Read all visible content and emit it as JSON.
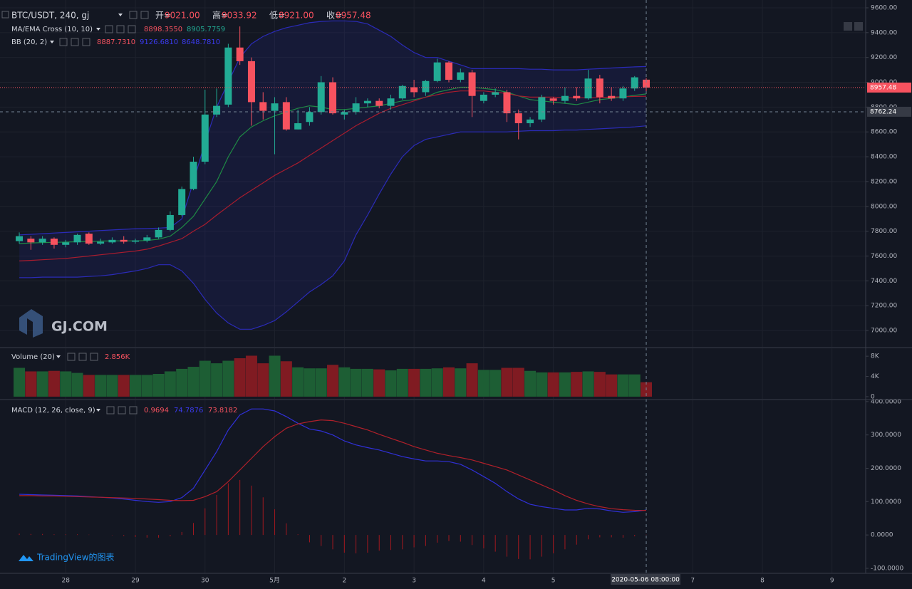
{
  "chart_data": [
    {
      "type": "candlestick",
      "legend": {
        "symbol": "BTC/USDT, 240, gj",
        "ohlc": [
          "开=",
          "9021.00",
          "高=",
          "9033.92",
          "低=",
          "8921.00",
          "收=",
          "8957.48"
        ],
        "ma": "MA/EMA Cross (10, 10)",
        "ma_values": [
          "8898.3550",
          "8905.7759"
        ],
        "bb": "BB (20, 2)",
        "bb_values": [
          "8887.7310",
          "9126.6810",
          "8648.7810"
        ]
      },
      "watermark": "GJ.COM",
      "xlim": [
        -1.66,
        72.9
      ],
      "ylim": [
        6868,
        9663
      ],
      "yticks": [
        {
          "value": 9600,
          "label": "9600.00"
        },
        {
          "value": 9400,
          "label": "9400.00"
        },
        {
          "value": 9200,
          "label": "9200.00"
        },
        {
          "value": 9000,
          "label": "9000.00"
        },
        {
          "value": 8800,
          "label": "8800.00"
        },
        {
          "value": 8600,
          "label": "8600.00"
        },
        {
          "value": 8400,
          "label": "8400.00"
        },
        {
          "value": 8200,
          "label": "8200.00"
        },
        {
          "value": 8000,
          "label": "8000.00"
        },
        {
          "value": 7800,
          "label": "7800.00"
        },
        {
          "value": 7600,
          "label": "7600.00"
        },
        {
          "value": 7400,
          "label": "7400.00"
        },
        {
          "value": 7200,
          "label": "7200.00"
        },
        {
          "value": 7000,
          "label": "7000.00"
        }
      ],
      "grid": true,
      "up_color": "#22ab94",
      "down_color": "#f7525f",
      "band_fill": "rgba(45,45,170,0.16)",
      "open": [
        7720,
        7740,
        7710,
        7740,
        7690,
        7710,
        7780,
        7700,
        7710,
        7730,
        7715,
        7725,
        7750,
        7810,
        7930,
        8140,
        8360,
        8740,
        8820,
        9280,
        9170,
        8840,
        8770,
        8840,
        8620,
        8680,
        8760,
        9000,
        8740,
        8760,
        8830,
        8850,
        8810,
        8870,
        8960,
        8920,
        9010,
        9160,
        9020,
        9080,
        8850,
        8900,
        8920,
        8750,
        8670,
        8700,
        8870,
        8850,
        8890,
        8870,
        9030,
        8890,
        8870,
        8950,
        9021
      ],
      "high": [
        7790,
        7760,
        7760,
        7750,
        7730,
        7780,
        7790,
        7740,
        7750,
        7760,
        7740,
        7770,
        7830,
        7960,
        8160,
        8400,
        8940,
        8950,
        9310,
        9450,
        9200,
        8920,
        8880,
        8880,
        8780,
        8800,
        9050,
        9040,
        8780,
        8880,
        8870,
        8870,
        8900,
        8980,
        9020,
        9020,
        9190,
        9170,
        9110,
        9100,
        8920,
        8950,
        8940,
        8780,
        8720,
        8900,
        8880,
        8960,
        8960,
        9100,
        9060,
        8960,
        8970,
        9050,
        9033.92
      ],
      "low": [
        7700,
        7650,
        7690,
        7660,
        7670,
        7690,
        7690,
        7690,
        7700,
        7700,
        7700,
        7710,
        7740,
        7800,
        7920,
        8130,
        8340,
        8720,
        8800,
        9140,
        8650,
        8700,
        8420,
        8610,
        8620,
        8650,
        8740,
        8740,
        8700,
        8740,
        8800,
        8790,
        8780,
        8860,
        8880,
        8890,
        9000,
        9000,
        9000,
        8720,
        8830,
        8880,
        8680,
        8540,
        8640,
        8680,
        8820,
        8830,
        8850,
        8860,
        8830,
        8850,
        8850,
        8930,
        8921
      ],
      "close": [
        7760,
        7710,
        7740,
        7690,
        7710,
        7770,
        7700,
        7715,
        7730,
        7715,
        7725,
        7750,
        7810,
        7930,
        8140,
        8360,
        8740,
        8810,
        9280,
        9170,
        8840,
        8770,
        8830,
        8620,
        8670,
        8760,
        9000,
        8750,
        8760,
        8830,
        8850,
        8810,
        8870,
        8970,
        8920,
        9010,
        9160,
        9020,
        9080,
        8890,
        8900,
        8920,
        8750,
        8670,
        8700,
        8880,
        8850,
        8890,
        8870,
        9030,
        8880,
        8870,
        8950,
        9040,
        8957.48
      ],
      "series": [
        {
          "color": "#1f8a45",
          "values": [
            7700,
            7705,
            7708,
            7710,
            7712,
            7715,
            7718,
            7720,
            7722,
            7722,
            7722,
            7725,
            7735,
            7760,
            7830,
            7920,
            8060,
            8200,
            8400,
            8560,
            8640,
            8690,
            8730,
            8760,
            8790,
            8810,
            8800,
            8780,
            8780,
            8790,
            8800,
            8810,
            8830,
            8850,
            8860,
            8880,
            8920,
            8940,
            8960,
            8960,
            8950,
            8940,
            8920,
            8890,
            8860,
            8850,
            8840,
            8830,
            8820,
            8840,
            8860,
            8870,
            8880,
            8895,
            8905.7759
          ]
        },
        {
          "color": "#a81c2e",
          "values": [
            7560,
            7565,
            7570,
            7575,
            7580,
            7590,
            7600,
            7610,
            7620,
            7630,
            7640,
            7655,
            7680,
            7710,
            7740,
            7800,
            7855,
            7930,
            8000,
            8070,
            8130,
            8190,
            8250,
            8300,
            8350,
            8410,
            8470,
            8530,
            8590,
            8650,
            8700,
            8750,
            8790,
            8820,
            8850,
            8880,
            8900,
            8920,
            8930,
            8930,
            8930,
            8920,
            8910,
            8890,
            8880,
            8880,
            8880,
            8875,
            8875,
            8875,
            8878,
            8880,
            8883,
            8886,
            8887.731
          ]
        },
        {
          "color": "#2b2bb8",
          "values": [
            7770,
            7775,
            7780,
            7785,
            7790,
            7795,
            7800,
            7805,
            7810,
            7815,
            7820,
            7822,
            7825,
            7830,
            7900,
            8200,
            8515,
            8800,
            9000,
            9200,
            9310,
            9370,
            9410,
            9440,
            9460,
            9480,
            9490,
            9495,
            9495,
            9490,
            9470,
            9420,
            9370,
            9300,
            9240,
            9200,
            9200,
            9170,
            9140,
            9110,
            9110,
            9110,
            9110,
            9110,
            9105,
            9105,
            9100,
            9100,
            9100,
            9105,
            9110,
            9115,
            9120,
            9124,
            9126.681
          ]
        },
        {
          "color": "#2b2bb8",
          "values": [
            7425,
            7425,
            7430,
            7430,
            7430,
            7430,
            7435,
            7440,
            7450,
            7465,
            7480,
            7500,
            7530,
            7530,
            7480,
            7380,
            7250,
            7140,
            7060,
            7010,
            7010,
            7040,
            7080,
            7150,
            7230,
            7310,
            7370,
            7440,
            7560,
            7770,
            7930,
            8100,
            8260,
            8400,
            8490,
            8540,
            8560,
            8580,
            8600,
            8600,
            8600,
            8600,
            8600,
            8605,
            8610,
            8610,
            8610,
            8615,
            8615,
            8620,
            8625,
            8630,
            8635,
            8640,
            8648.781
          ]
        }
      ],
      "last_price": 8957.48,
      "last_color": "#f7525f",
      "crosshair_price": 8762.24
    },
    {
      "type": "bar",
      "legend": {
        "title": "Volume (20)",
        "values": [
          "2.856K"
        ]
      },
      "xlim": [
        -1.66,
        72.9
      ],
      "ylim": [
        -0.43,
        9.57
      ],
      "yticks": [
        {
          "value": 8,
          "label": "8K"
        },
        {
          "value": 4,
          "label": "4K"
        },
        0
      ],
      "up_color": "#1d5e34",
      "down_color": "#801b22",
      "values": [
        5.7,
        5.0,
        5.0,
        5.1,
        5.0,
        4.7,
        4.3,
        4.3,
        4.3,
        4.3,
        4.3,
        4.3,
        4.5,
        5.0,
        5.5,
        5.9,
        7.1,
        6.6,
        7.1,
        7.6,
        8.1,
        6.6,
        8.1,
        7.0,
        5.8,
        5.6,
        5.6,
        6.3,
        5.8,
        5.5,
        5.5,
        5.4,
        5.2,
        5.5,
        5.5,
        5.5,
        5.6,
        5.8,
        5.6,
        6.6,
        5.3,
        5.3,
        5.7,
        5.7,
        5.1,
        4.8,
        4.8,
        4.8,
        4.9,
        5.0,
        4.9,
        4.4,
        4.4,
        4.4,
        2.856
      ]
    },
    {
      "type": "line",
      "legend": {
        "title": "MACD (12, 26, close, 9)",
        "values": [
          "0.9694",
          "74.7876",
          "73.8182"
        ]
      },
      "xlim": [
        -1.66,
        72.9
      ],
      "ylim": [
        -115,
        404
      ],
      "yticks": [
        {
          "value": 400,
          "label": "400.0000"
        },
        {
          "value": 300,
          "label": "300.0000"
        },
        {
          "value": 200,
          "label": "200.0000"
        },
        {
          "value": 100,
          "label": "100.0000"
        },
        {
          "value": 0,
          "label": "0.0000"
        },
        {
          "value": -100,
          "label": "-100.0000"
        }
      ],
      "xticks": [
        {
          "value": 4,
          "label": "28"
        },
        {
          "value": 10,
          "label": "29"
        },
        {
          "value": 16,
          "label": "30"
        },
        {
          "value": 22,
          "label": "5月"
        },
        {
          "value": 28,
          "label": "2"
        },
        {
          "value": 34,
          "label": "3"
        },
        {
          "value": 40,
          "label": "4"
        },
        {
          "value": 46,
          "label": "5"
        },
        {
          "value": 58,
          "label": "7"
        },
        {
          "value": 64,
          "label": "8"
        },
        {
          "value": 70,
          "label": "9"
        }
      ],
      "crosshair_time": "2020-05-06 08:00:00",
      "histogram": {
        "color": "#a3181f",
        "values": [
          4,
          3,
          3,
          2,
          2,
          2,
          1,
          0,
          -1,
          -3,
          -6,
          -8,
          -8,
          -4,
          9,
          36,
          80,
          120,
          155,
          165,
          148,
          113,
          77,
          35,
          2,
          -22,
          -33,
          -43,
          -53,
          -55,
          -53,
          -47,
          -45,
          -43,
          -37,
          -33,
          -23,
          -18,
          -20,
          -30,
          -40,
          -50,
          -65,
          -72,
          -73,
          -65,
          -55,
          -43,
          -29,
          -13,
          -7,
          -7,
          -8,
          -4,
          0.9694
        ]
      },
      "series": [
        {
          "color": "#3030d8",
          "values": [
            122,
            121,
            120,
            119,
            118,
            117,
            115,
            113,
            111,
            108,
            104,
            100,
            98,
            100,
            112,
            140,
            195,
            250,
            315,
            360,
            378,
            378,
            372,
            355,
            335,
            318,
            312,
            300,
            282,
            270,
            262,
            255,
            245,
            235,
            228,
            222,
            222,
            220,
            212,
            195,
            175,
            155,
            130,
            108,
            92,
            85,
            80,
            75,
            75,
            80,
            78,
            72,
            68,
            70,
            74.7876
          ]
        },
        {
          "color": "#b0202a",
          "values": [
            118,
            118,
            117,
            117,
            116,
            115,
            114,
            113,
            112,
            111,
            110,
            108,
            106,
            104,
            103,
            104,
            115,
            130,
            160,
            195,
            230,
            265,
            295,
            320,
            333,
            340,
            345,
            343,
            335,
            325,
            315,
            302,
            290,
            278,
            265,
            255,
            245,
            238,
            232,
            225,
            215,
            205,
            195,
            180,
            165,
            150,
            135,
            118,
            104,
            93,
            85,
            79,
            76,
            74,
            73.8182
          ]
        }
      ]
    }
  ],
  "footer": "TradingView的图表"
}
